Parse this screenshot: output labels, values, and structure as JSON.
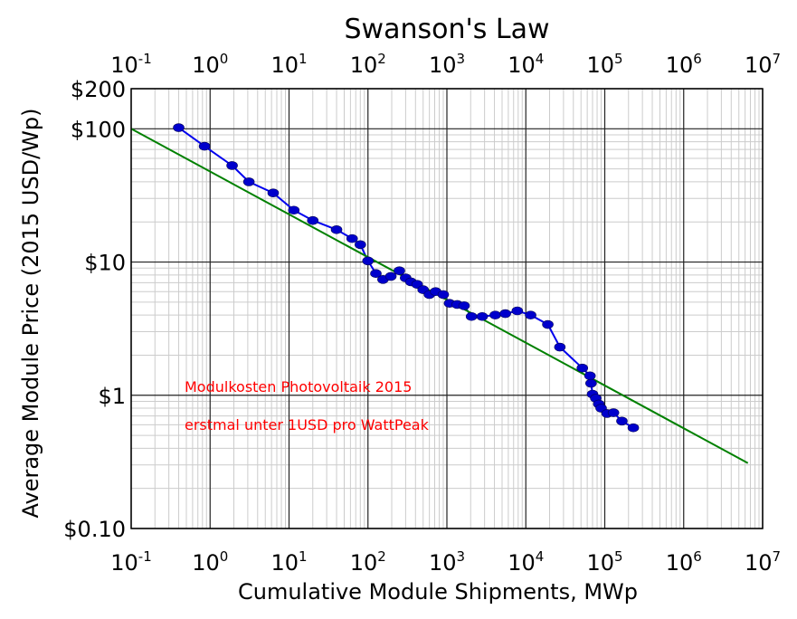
{
  "chart_data": {
    "type": "scatter",
    "title": "Swanson's Law",
    "xlabel": "Cumulative Module Shipments, MWp",
    "ylabel": "Average Module Price (2015 USD/Wp)",
    "x_scale": "log",
    "y_scale": "log",
    "xlim": [
      0.1,
      10000000
    ],
    "ylim": [
      0.1,
      200
    ],
    "grid": true,
    "x_ticks": [
      {
        "value": 0.1,
        "base": "10",
        "exp": "-1"
      },
      {
        "value": 1,
        "base": "10",
        "exp": "0"
      },
      {
        "value": 10,
        "base": "10",
        "exp": "1"
      },
      {
        "value": 100,
        "base": "10",
        "exp": "2"
      },
      {
        "value": 1000,
        "base": "10",
        "exp": "3"
      },
      {
        "value": 10000,
        "base": "10",
        "exp": "4"
      },
      {
        "value": 100000,
        "base": "10",
        "exp": "5"
      },
      {
        "value": 1000000,
        "base": "10",
        "exp": "6"
      },
      {
        "value": 10000000,
        "base": "10",
        "exp": "7"
      }
    ],
    "y_ticks": [
      {
        "value": 200,
        "label": "$200"
      },
      {
        "value": 100,
        "label": "$100"
      },
      {
        "value": 10,
        "label": "$10"
      },
      {
        "value": 1,
        "label": "$1"
      },
      {
        "value": 0.1,
        "label": "$0.10"
      }
    ],
    "series": [
      {
        "type": "line+markers",
        "color": "#0000ee",
        "marker_color": "#0000cc",
        "x": [
          0.4,
          0.85,
          1.9,
          3.1,
          6.3,
          11.5,
          20,
          40,
          63,
          80,
          100,
          126,
          155,
          195,
          250,
          300,
          350,
          420,
          500,
          600,
          720,
          900,
          1080,
          1350,
          1650,
          2050,
          2800,
          4100,
          5500,
          7800,
          11500,
          19000,
          27000,
          52000,
          65000,
          67000,
          70000,
          77000,
          84000,
          90000,
          107000,
          129000,
          165000,
          230000
        ],
        "y": [
          102,
          74,
          53,
          40,
          33,
          24.5,
          20.5,
          17.5,
          15,
          13.5,
          10.2,
          8.2,
          7.4,
          7.8,
          8.6,
          7.6,
          7.1,
          6.8,
          6.2,
          5.7,
          6.0,
          5.7,
          4.9,
          4.8,
          4.7,
          3.9,
          3.9,
          4.0,
          4.1,
          4.3,
          4.0,
          3.4,
          2.3,
          1.6,
          1.4,
          1.23,
          1.02,
          0.95,
          0.86,
          0.8,
          0.73,
          0.74,
          0.64,
          0.57
        ]
      },
      {
        "type": "line",
        "color": "#008000",
        "x": [
          0.1,
          6500000
        ],
        "y": [
          100,
          0.31
        ]
      }
    ],
    "annotations": [
      {
        "text": "Modulkosten Photovoltaik 2015",
        "color": "#ff0000"
      },
      {
        "text": "erstmal unter 1USD pro WattPeak",
        "color": "#ff0000"
      }
    ]
  }
}
